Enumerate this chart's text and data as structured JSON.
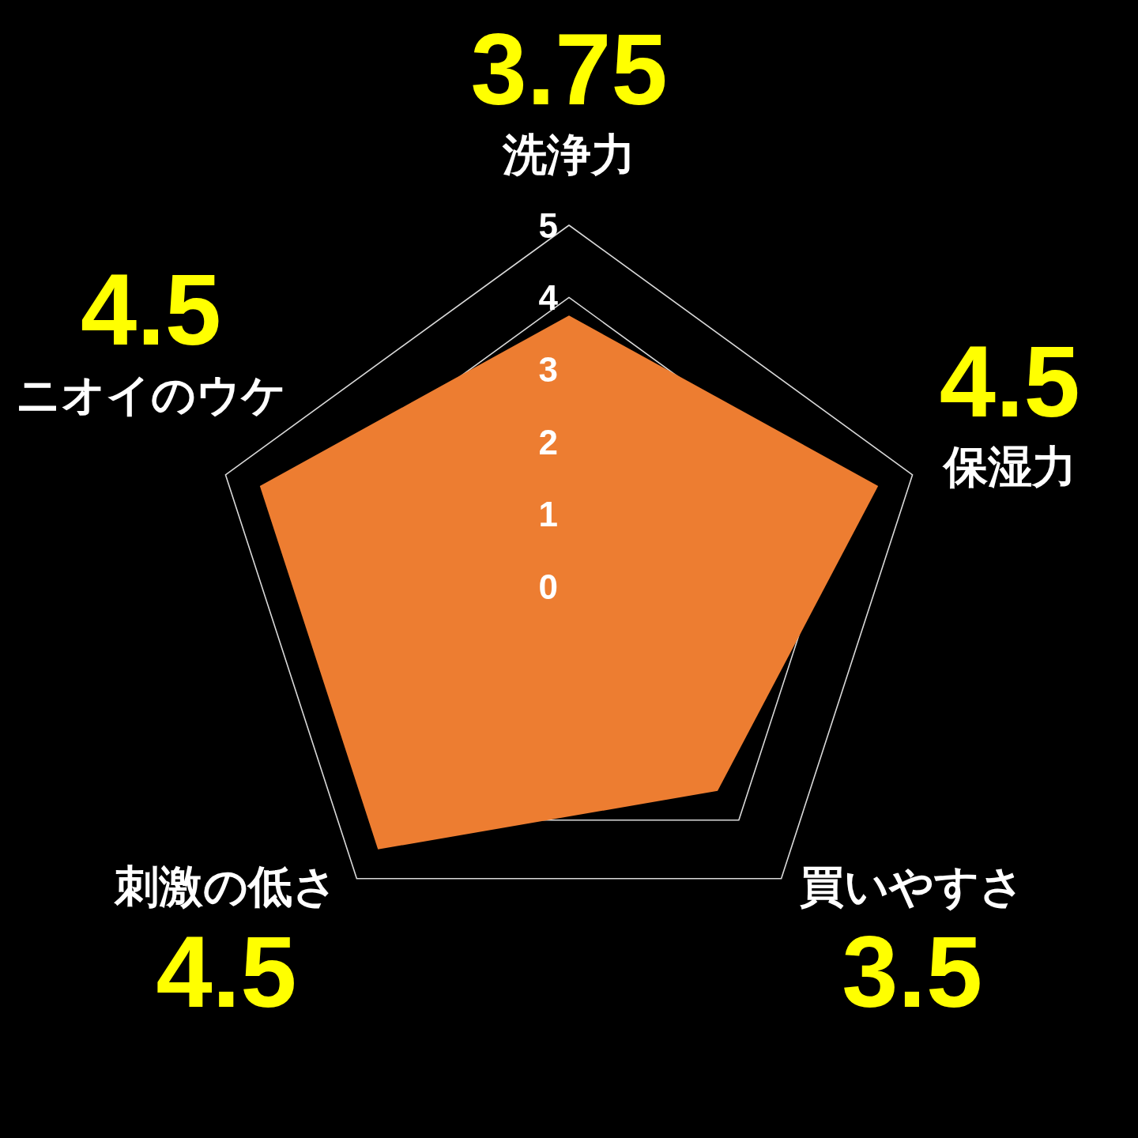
{
  "chart_data": {
    "type": "radar",
    "categories": [
      "洗浄力",
      "保湿力",
      "買いやすさ",
      "刺激の低さ",
      "ニオイのウケ"
    ],
    "series": [
      {
        "color": "#ed7d31",
        "values": [
          3.75,
          4.5,
          3.5,
          4.5,
          4.5
        ]
      }
    ],
    "ylim": [
      0,
      5
    ],
    "yticks": [
      0,
      1,
      2,
      3,
      4,
      5
    ],
    "grid": true,
    "data_labels": true
  }
}
